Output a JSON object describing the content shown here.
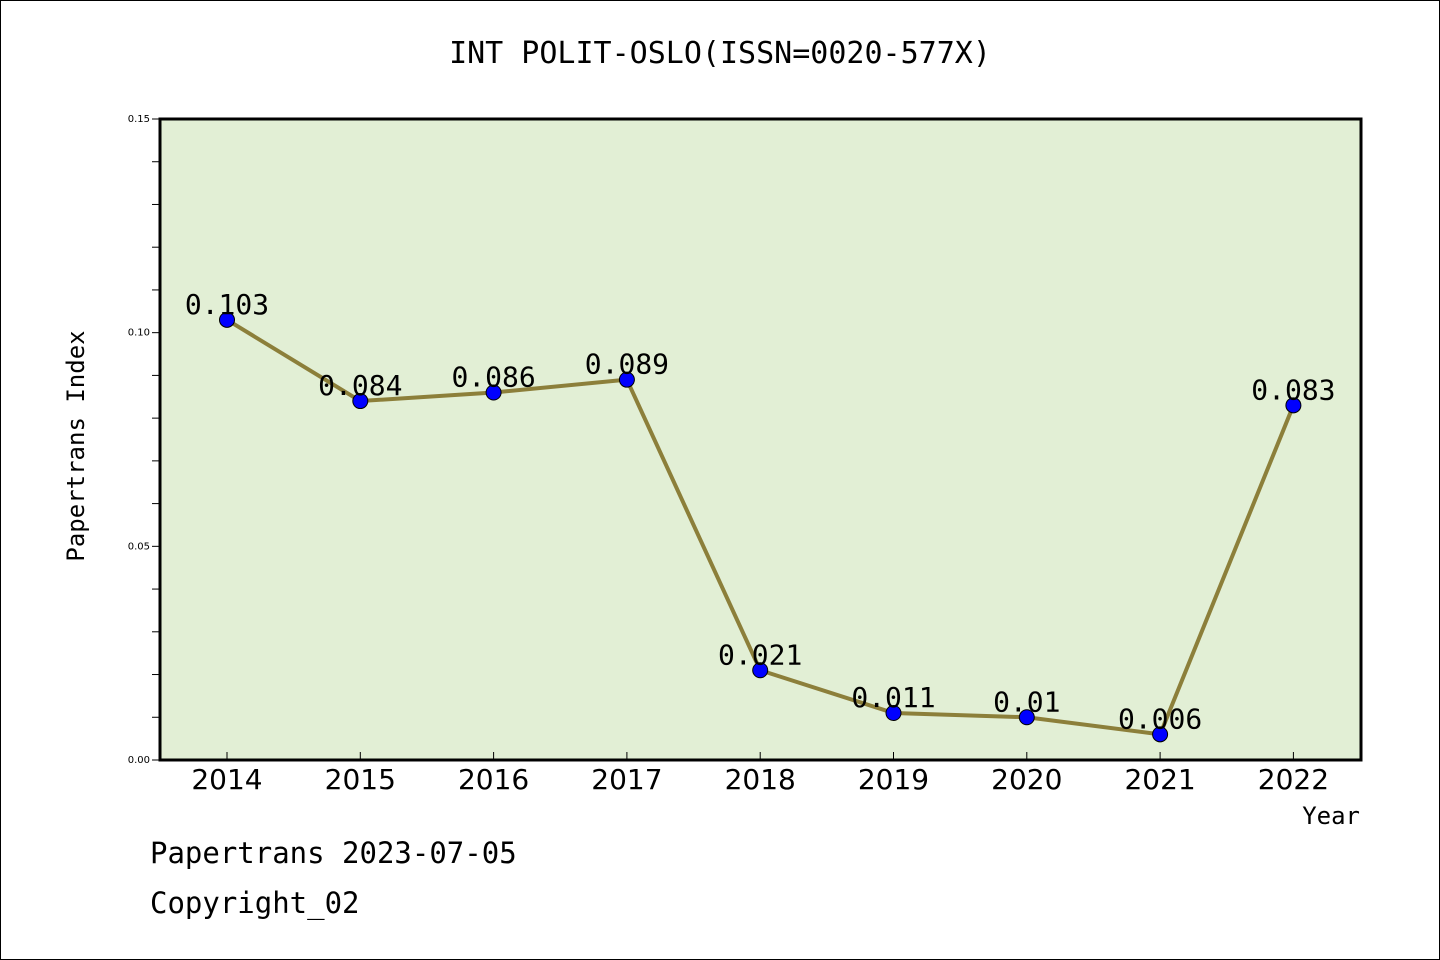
{
  "chart_data": {
    "type": "line",
    "title": "INT POLIT-OSLO(ISSN=0020-577X)",
    "xlabel": "Year",
    "ylabel": "Papertrans Index",
    "categories": [
      "2014",
      "2015",
      "2016",
      "2017",
      "2018",
      "2019",
      "2020",
      "2021",
      "2022"
    ],
    "series": [
      {
        "values": [
          0.103,
          0.084,
          0.086,
          0.089,
          0.021,
          0.011,
          0.01,
          0.006,
          0.083
        ],
        "labels": [
          "0.103",
          "0.084",
          "0.086",
          "0.089",
          "0.021",
          "0.011",
          "0.01",
          "0.006",
          "0.083"
        ]
      }
    ],
    "ylim": [
      0,
      0.15
    ],
    "yticks": [
      "0.00",
      "0.05",
      "0.10",
      "0.15"
    ],
    "grid": false,
    "colors": {
      "plot_background": "#e2efd5",
      "line": "#8c7f3a",
      "marker": "#0000ff"
    }
  },
  "footer": {
    "date_text": "Papertrans 2023-07-05",
    "copyright_text": "Copyright_02"
  }
}
